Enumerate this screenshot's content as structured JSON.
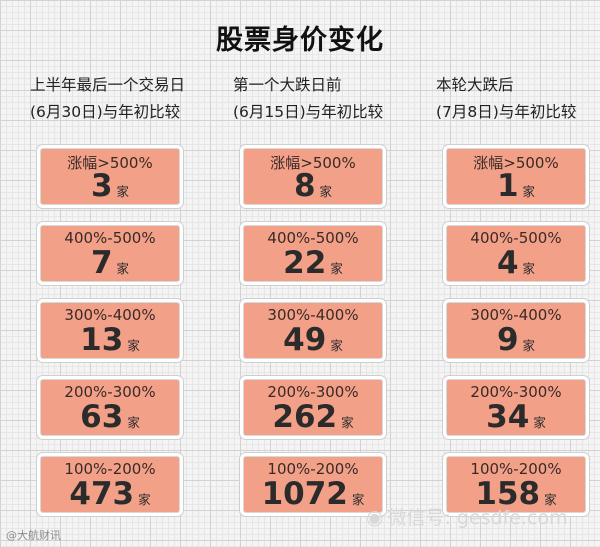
{
  "title": "股票身价变化",
  "unit": "家",
  "columns": [
    {
      "header_line1": "上半年最后一个交易日",
      "header_line2": "(6月30日)与年初比较",
      "cards": [
        {
          "range": "涨幅>500%",
          "count": "3"
        },
        {
          "range": "400%-500%",
          "count": "7"
        },
        {
          "range": "300%-400%",
          "count": "13"
        },
        {
          "range": "200%-300%",
          "count": "63"
        },
        {
          "range": "100%-200%",
          "count": "473"
        }
      ]
    },
    {
      "header_line1": "第一个大跌日前",
      "header_line2": "(6月15日)与年初比较",
      "cards": [
        {
          "range": "涨幅>500%",
          "count": "8"
        },
        {
          "range": "400%-500%",
          "count": "22"
        },
        {
          "range": "300%-400%",
          "count": "49"
        },
        {
          "range": "200%-300%",
          "count": "262"
        },
        {
          "range": "100%-200%",
          "count": "1072"
        }
      ]
    },
    {
      "header_line1": "本轮大跌后",
      "header_line2": "(7月8日)与年初比较",
      "cards": [
        {
          "range": "涨幅>500%",
          "count": "1"
        },
        {
          "range": "400%-500%",
          "count": "4"
        },
        {
          "range": "300%-400%",
          "count": "9"
        },
        {
          "range": "200%-300%",
          "count": "34"
        },
        {
          "range": "100%-200%",
          "count": "158"
        }
      ]
    }
  ],
  "watermark_left": "@大航财讯",
  "watermark_right": "微信号: gesdfe.com",
  "watermark_icon": "wechat-icon"
}
